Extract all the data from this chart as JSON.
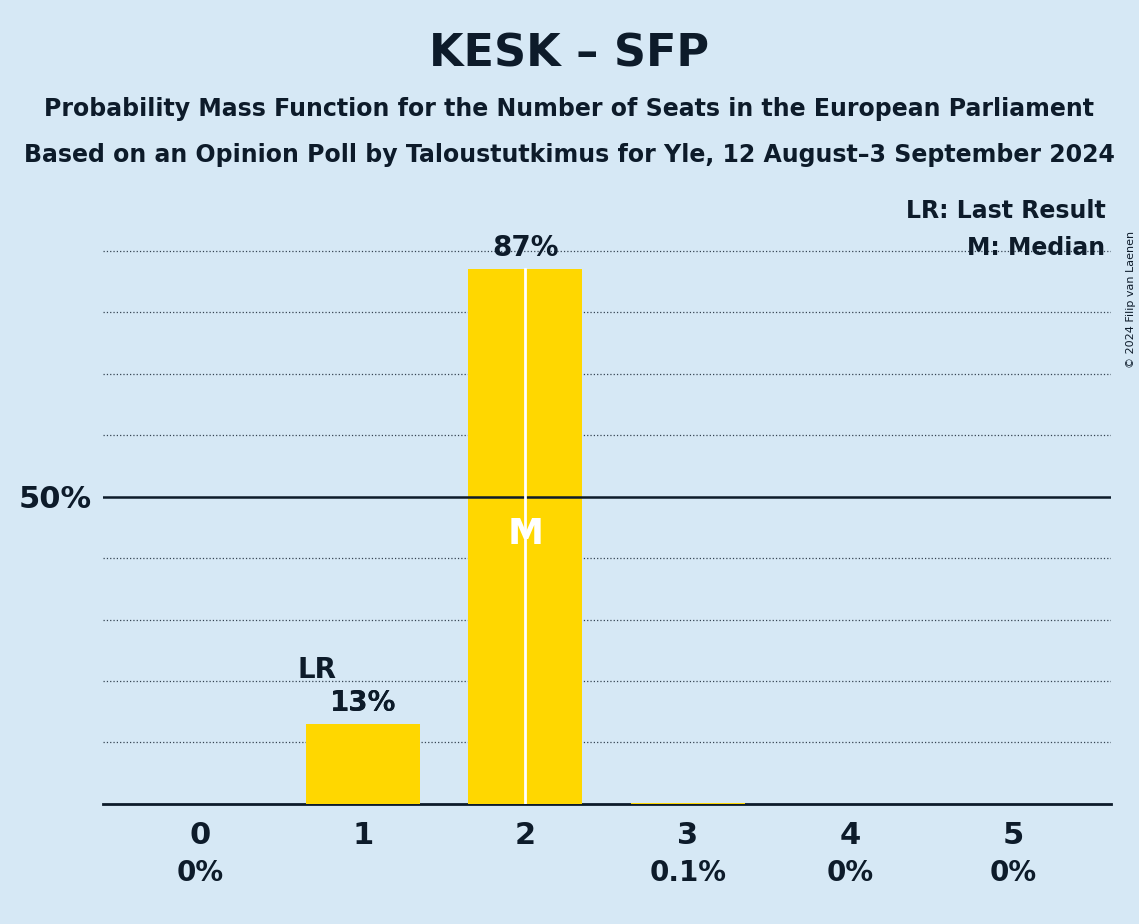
{
  "title": "KESK – SFP",
  "subtitle1": "Probability Mass Function for the Number of Seats in the European Parliament",
  "subtitle2": "Based on an Opinion Poll by Taloustutkimus for Yle, 12 August–3 September 2024",
  "categories": [
    0,
    1,
    2,
    3,
    4,
    5
  ],
  "values": [
    0.0,
    13.0,
    87.0,
    0.1,
    0.0,
    0.0
  ],
  "bar_color": "#FFD700",
  "background_color": "#D6E8F5",
  "text_color": "#0D1B2A",
  "median_bar": 2,
  "lr_bar": 1,
  "legend_lr": "LR: Last Result",
  "legend_m": "M: Median",
  "copyright": "© 2024 Filip van Laenen",
  "y_50_line": 50,
  "bar_width": 0.7,
  "value_labels": [
    "0%",
    "13%",
    "87%",
    "0.1%",
    "0%",
    "0%"
  ],
  "grid_positions": [
    10,
    20,
    30,
    40,
    60,
    70,
    80,
    90
  ],
  "ylim": [
    0,
    100
  ],
  "xlim": [
    -0.6,
    5.6
  ]
}
